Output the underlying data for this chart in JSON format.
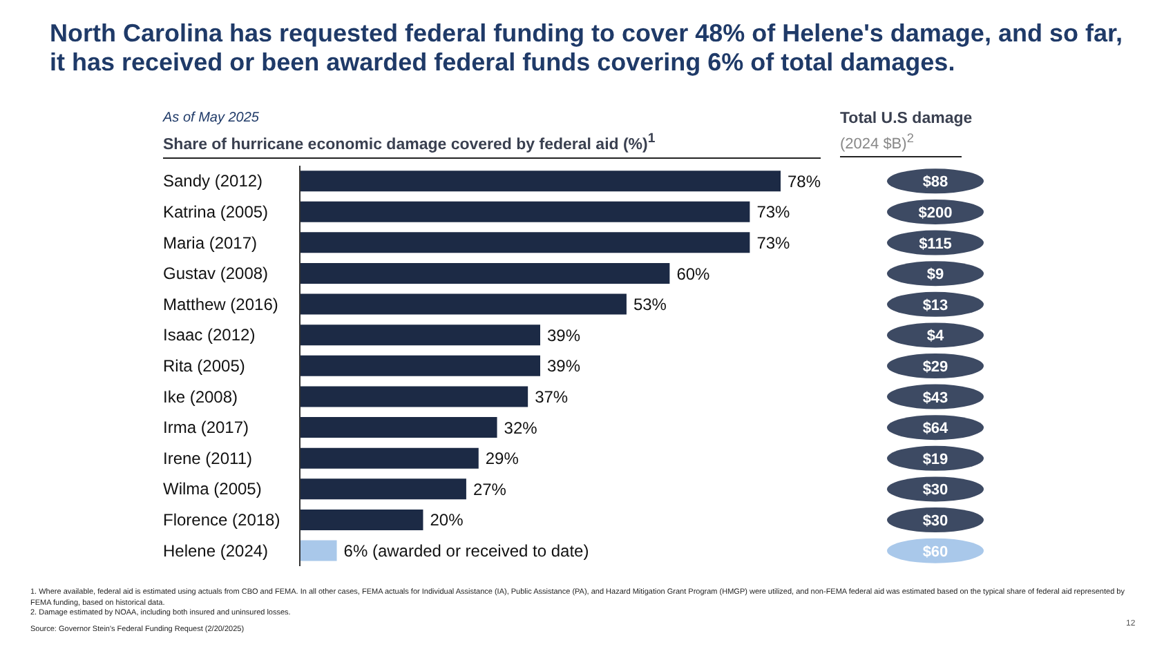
{
  "chart_data": [
    {
      "type": "bar",
      "orientation": "horizontal",
      "title": "North Carolina has requested federal funding to cover 48% of Helene's damage, and so far, it has received or been awarded federal funds covering 6% of total damages.",
      "subtitle": "As of May 2025",
      "xlabel": "Share of hurricane economic damage covered by federal aid (%)$^{1}$",
      "categories": [
        "Sandy (2012)",
        "Katrina (2005)",
        "Maria (2017)",
        "Gustav (2008)",
        "Matthew (2016)",
        "Isaac (2012)",
        "Rita (2005)",
        "Ike (2008)",
        "Irma (2017)",
        "Irene (2011)",
        "Wilma (2005)",
        "Florence (2018)",
        "Helene (2024)"
      ],
      "values": [
        78,
        73,
        73,
        60,
        53,
        39,
        39,
        37,
        32,
        29,
        27,
        20,
        6
      ],
      "colors": [
        "#1c2a45",
        "#1c2a45",
        "#1c2a45",
        "#1c2a45",
        "#1c2a45",
        "#1c2a45",
        "#1c2a45",
        "#1c2a45",
        "#1c2a45",
        "#1c2a45",
        "#1c2a45",
        "#1c2a45",
        "#a9c8ea"
      ],
      "value_labels": [
        "78%",
        "73%",
        "73%",
        "60%",
        "53%",
        "39%",
        "39%",
        "37%",
        "32%",
        "29%",
        "27%",
        "20%",
        "6% (awarded or received to date)"
      ],
      "annotations": [
        "1.  Where available, federal aid is estimated using actuals from CBO and FEMA. In all other cases, FEMA actuals for Individual Assistance (IA), Public Assistance (PA), and Hazard Mitigation Grant Program (HMGP) were utilized, and non-FEMA federal aid was estimated based on the typical share of federal aid represented by FEMA funding, based on historical data.",
        "2.  Damage estimated by NOAA, including both insured and uninsured losses.",
        "Source: Governor Stein's Federal Funding Request (2/20/2025)",
        "12"
      ]
    },
    {
      "type": "other",
      "title": "Total U.S damage",
      "subtitle": "(2024 $B)$^{2}$",
      "values": [
        88,
        200,
        115,
        9,
        13,
        4,
        29,
        43,
        64,
        19,
        30,
        30,
        60
      ],
      "value_labels": [
        "$88",
        "$200",
        "$115",
        "$9",
        "$13",
        "$4",
        "$29",
        "$43",
        "$64",
        "$19",
        "$30",
        "$30",
        "$60"
      ],
      "colors": [
        "#3d4a63",
        "#3d4a63",
        "#3d4a63",
        "#3d4a63",
        "#3d4a63",
        "#3d4a63",
        "#3d4a63",
        "#3d4a63",
        "#3d4a63",
        "#3d4a63",
        "#3d4a63",
        "#3d4a63",
        "#a9c8ea"
      ]
    }
  ]
}
